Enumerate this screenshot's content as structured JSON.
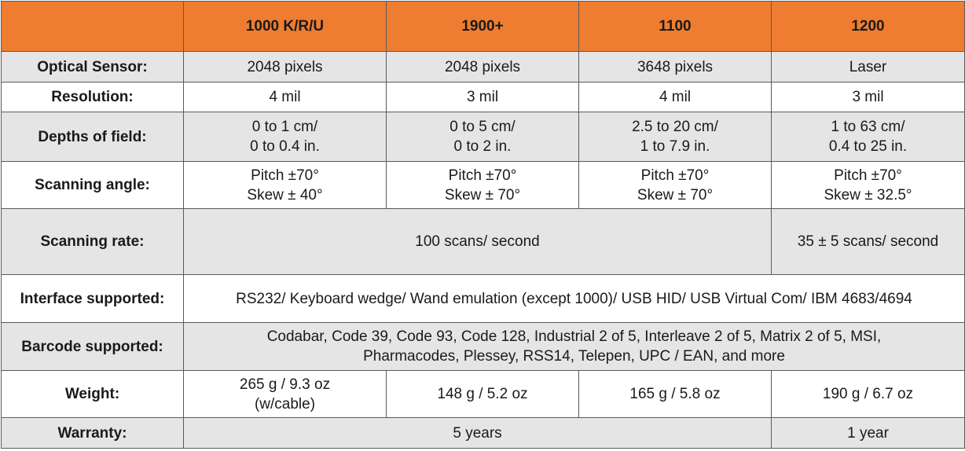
{
  "header": {
    "columns": [
      "1000 K/R/U",
      "1900+",
      "1100",
      "1200"
    ]
  },
  "rows": {
    "optical_sensor": {
      "label": "Optical Sensor:",
      "values": [
        "2048 pixels",
        "2048 pixels",
        "3648 pixels",
        "Laser"
      ]
    },
    "resolution": {
      "label": "Resolution:",
      "values": [
        "4 mil",
        "3 mil",
        "4 mil",
        "3 mil"
      ]
    },
    "depths_of_field": {
      "label": "Depths of field:",
      "values": [
        [
          "0 to 1 cm/",
          "0 to 0.4 in."
        ],
        [
          "0 to 5 cm/",
          "0 to 2 in."
        ],
        [
          "2.5 to 20 cm/",
          "1 to 7.9 in."
        ],
        [
          "1 to 63 cm/",
          "0.4 to 25 in."
        ]
      ]
    },
    "scanning_angle": {
      "label": "Scanning angle:",
      "values": [
        [
          "Pitch ±70°",
          "Skew ± 40°"
        ],
        [
          "Pitch ±70°",
          "Skew ± 70°"
        ],
        [
          "Pitch ±70°",
          "Skew ± 70°"
        ],
        [
          "Pitch ±70°",
          "Skew ± 32.5°"
        ]
      ]
    },
    "scanning_rate": {
      "label": "Scanning rate:",
      "shared": "100 scans/ second",
      "model_1200": "35 ± 5 scans/ second"
    },
    "interface": {
      "label": "Interface supported:",
      "value": "RS232/ Keyboard wedge/ Wand emulation (except 1000)/ USB HID/ USB Virtual Com/ IBM 4683/4694"
    },
    "barcode": {
      "label": "Barcode supported:",
      "lines": [
        "Codabar, Code 39, Code 93, Code 128, Industrial 2 of 5, Interleave 2 of 5, Matrix 2 of 5, MSI,",
        "Pharmacodes, Plessey, RSS14, Telepen, UPC / EAN, and more"
      ]
    },
    "weight": {
      "label": "Weight:",
      "values": [
        [
          "265 g / 9.3 oz",
          "(w/cable)"
        ],
        "148 g / 5.2 oz",
        "165 g / 5.8 oz",
        "190 g / 6.7 oz"
      ]
    },
    "warranty": {
      "label": "Warranty:",
      "shared": "5 years",
      "model_1200": "1 year"
    }
  },
  "colors": {
    "accent": "#ee7d31",
    "header_text": "#ffffff",
    "shaded_row": "#e5e5e5",
    "border": "#5a5a5a"
  }
}
